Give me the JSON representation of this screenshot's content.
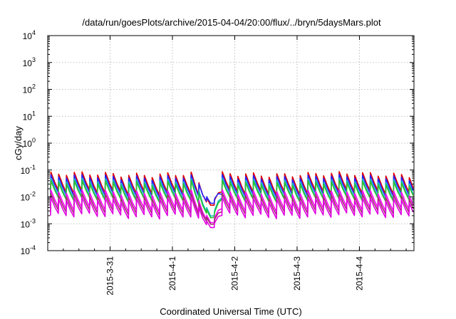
{
  "chart_data": {
    "type": "line",
    "title": "/data/run/goesPlots/archive/2015-04-04/20:00/flux/../bryn/5daysMars.plot",
    "xlabel": "Coordinated Universal Time (UTC)",
    "ylabel": "cGy/day",
    "yscale": "log",
    "ylim": [
      0.0001,
      10000
    ],
    "y_ticks": [
      {
        "base": "10",
        "exp": "4"
      },
      {
        "base": "10",
        "exp": "3"
      },
      {
        "base": "10",
        "exp": "2"
      },
      {
        "base": "10",
        "exp": "1"
      },
      {
        "base": "10",
        "exp": "0"
      },
      {
        "base": "10",
        "exp": "-1"
      },
      {
        "base": "10",
        "exp": "-2"
      },
      {
        "base": "10",
        "exp": "-3"
      },
      {
        "base": "10",
        "exp": "-4"
      }
    ],
    "xlim": [
      "2015-03-30 00:00",
      "2015-04-04 21:00"
    ],
    "x_ticks": [
      "2015-3-31",
      "2015-4-1",
      "2015-4-2",
      "2015-4-3",
      "2015-4-4"
    ],
    "grid": true,
    "legend": "none",
    "sawtooth_period_hours": 3,
    "dip": {
      "start": "2015-04-01 08:00",
      "minimum": "2015-04-01 15:30",
      "end": "2015-04-01 19:00"
    },
    "series": [
      {
        "color": "#e00000",
        "peak": 0.07,
        "trough": 0.015,
        "dip_min": 0.004
      },
      {
        "color": "#2222ff",
        "peak": 0.055,
        "trough": 0.012,
        "dip_min": 0.005
      },
      {
        "color": "#00b8b8",
        "peak": 0.04,
        "trough": 0.009,
        "dip_min": 0.0015
      },
      {
        "color": "#30c030",
        "peak": 0.033,
        "trough": 0.008,
        "dip_min": 0.0013
      },
      {
        "color": "#ff00ff",
        "peak": 0.015,
        "trough": 0.0035,
        "dip_min": 0.0009
      },
      {
        "color": "#a0306a",
        "peak": 0.011,
        "trough": 0.0027,
        "dip_min": 0.0008
      },
      {
        "color": "#e000e0",
        "peak": 0.008,
        "trough": 0.002,
        "dip_min": 0.0006
      }
    ]
  }
}
